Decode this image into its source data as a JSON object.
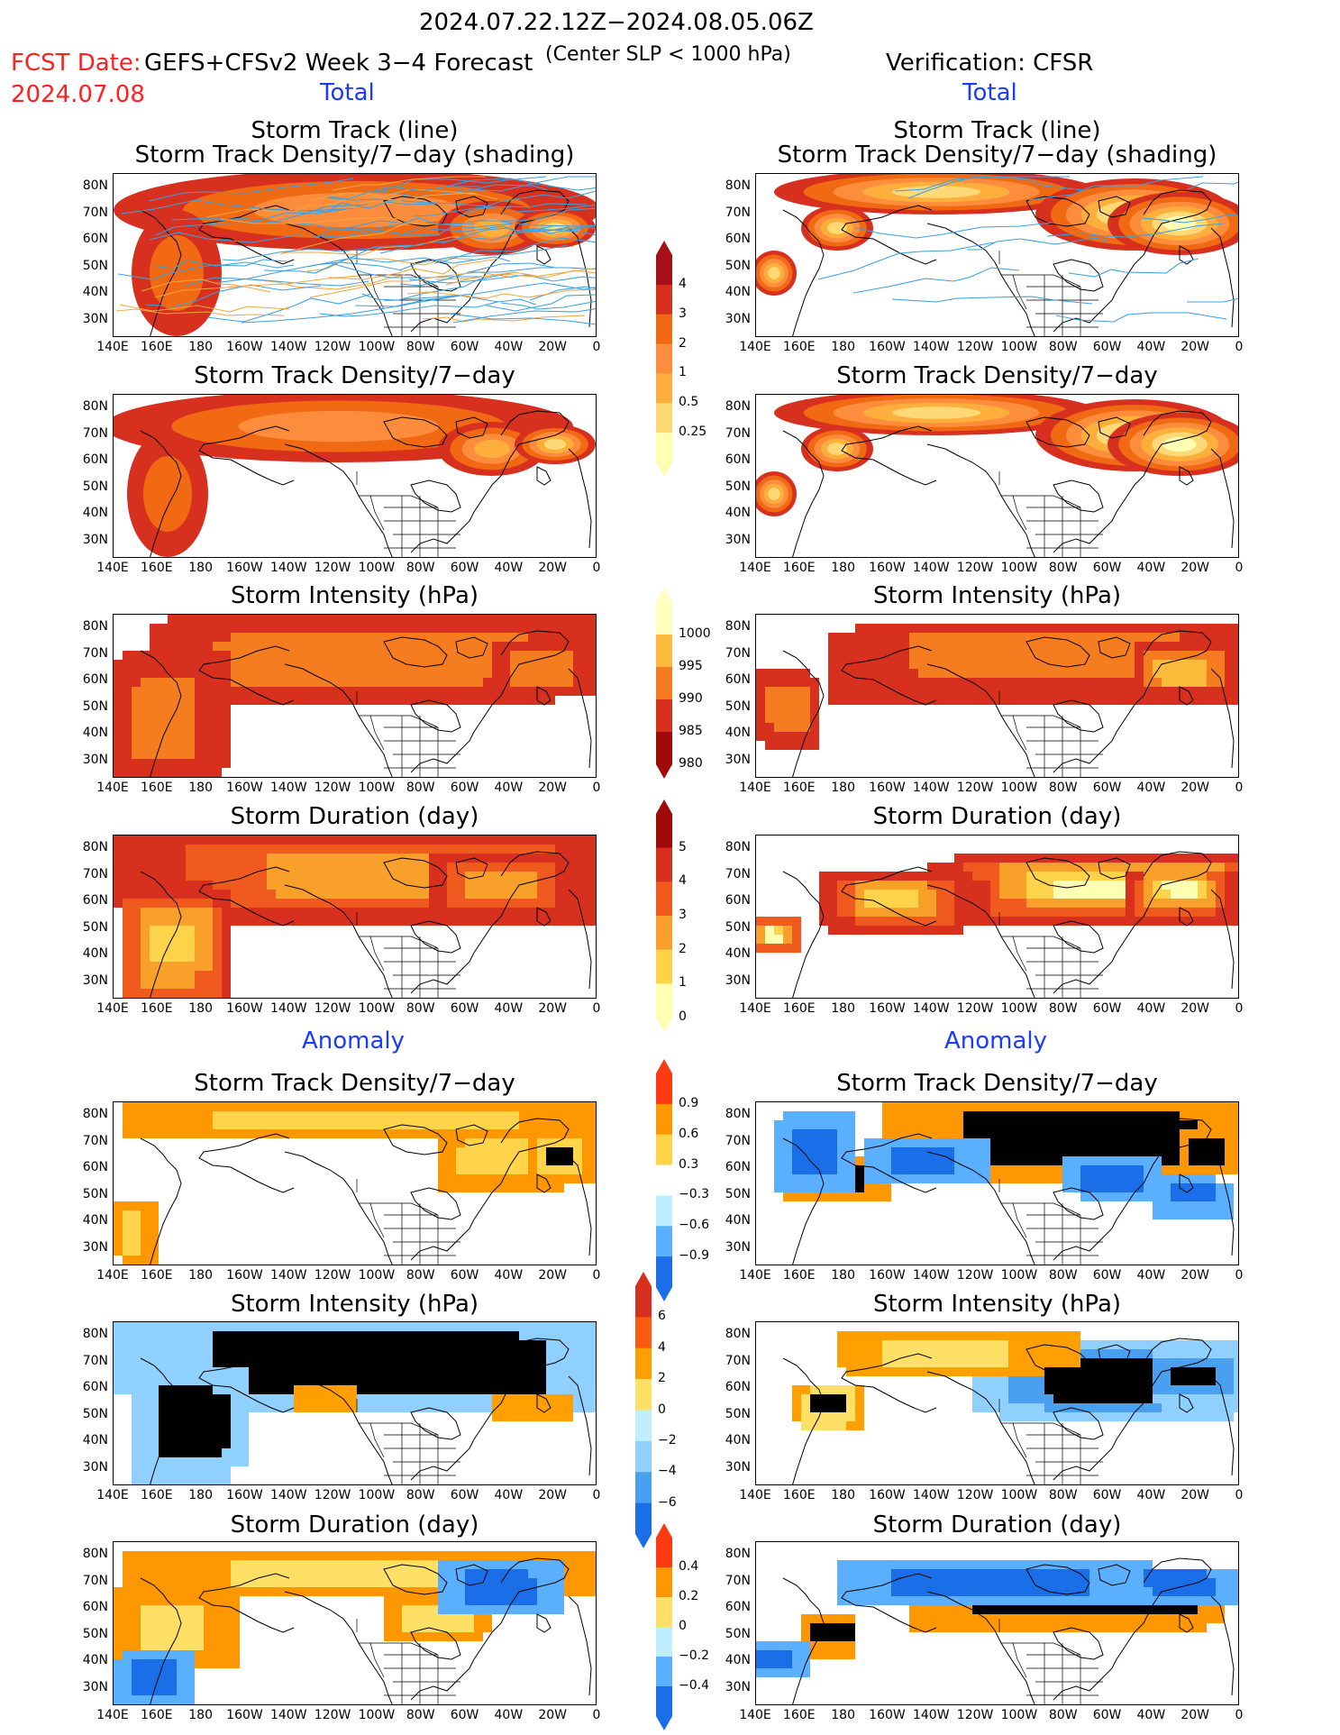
{
  "header": {
    "period": "2024.07.22.12Z−2024.08.05.06Z",
    "fcst_label": "FCST Date:",
    "fcst_date": "2024.07.08",
    "model": "GEFS+CFSv2 Week 3−4 Forecast",
    "criterion": "(Center SLP < 1000 hPa)",
    "verification": "Verification: CFSR"
  },
  "sections": {
    "total": "Total",
    "anomaly": "Anomaly"
  },
  "panel_titles": {
    "track_line": "Storm Track (line)",
    "track_shading": "Storm Track Density/7−day (shading)",
    "density": "Storm Track Density/7−day",
    "intensity": "Storm Intensity (hPa)",
    "duration": "Storm Duration (day)"
  },
  "axes": {
    "lat_labels": [
      "80N",
      "70N",
      "60N",
      "50N",
      "40N",
      "30N"
    ],
    "lon_labels": [
      "140E",
      "160E",
      "180",
      "160W",
      "140W",
      "120W",
      "100W",
      "80W",
      "60W",
      "40W",
      "20W",
      "0"
    ]
  },
  "colorbars": {
    "density_total": {
      "labels": [
        "4",
        "3",
        "2",
        "1",
        "0.5",
        "0.25"
      ],
      "colors": [
        "#a50f15",
        "#d7301f",
        "#f16913",
        "#fd8d3c",
        "#fdae3b",
        "#fed976",
        "#ffffb2"
      ]
    },
    "intensity_total": {
      "labels": [
        "1000",
        "995",
        "990",
        "985",
        "980"
      ],
      "colors": [
        "#ffffc0",
        "#fdbb3c",
        "#f57c1f",
        "#d7301f",
        "#a00a0a"
      ]
    },
    "duration_total": {
      "labels": [
        "5",
        "4",
        "3",
        "2",
        "1",
        "0"
      ],
      "colors": [
        "#a00a0a",
        "#d7301f",
        "#f15a1e",
        "#f9a02a",
        "#fdd34a",
        "#ffffb2"
      ]
    },
    "density_anom": {
      "labels": [
        "0.9",
        "0.6",
        "0.3",
        "−0.3",
        "−0.6",
        "−0.9"
      ],
      "colors": [
        "#ff3a10",
        "#ff9800",
        "#ffd34a",
        "#ffffff",
        "#bfeeff",
        "#5ab0ff",
        "#1a6fe8"
      ]
    },
    "intensity_anom": {
      "labels": [
        "6",
        "4",
        "2",
        "0",
        "−2",
        "−4",
        "−6"
      ],
      "colors": [
        "#d7301f",
        "#ff5a10",
        "#ffa000",
        "#ffe066",
        "#bfeeff",
        "#8fd0ff",
        "#4aa0f0",
        "#1a6fe8"
      ]
    },
    "duration_anom": {
      "labels": [
        "0.4",
        "0.2",
        "0",
        "−0.2",
        "−0.4"
      ],
      "colors": [
        "#ff3a10",
        "#ff9800",
        "#ffe066",
        "#bfeeff",
        "#5ab0ff",
        "#1a6fe8"
      ]
    }
  }
}
